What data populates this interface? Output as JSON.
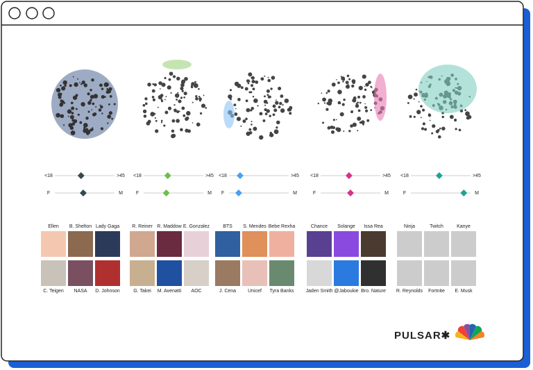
{
  "columns": [
    {
      "color": "#37474f",
      "age_labels": [
        "<18",
        ">45"
      ],
      "gender_labels": [
        "F",
        "M"
      ],
      "age_position": 0.45,
      "gender_position": 0.48,
      "top": [
        "Ellen",
        "B. Shelton",
        "Lady Gaga"
      ],
      "bottom": [
        "C. Teigen",
        "NASA",
        "D. Johnson"
      ]
    },
    {
      "color": "#6bbf4a",
      "age_labels": [
        "<18",
        ">45"
      ],
      "gender_labels": [
        "F",
        "M"
      ],
      "age_position": 0.42,
      "gender_position": 0.4,
      "top": [
        "R. Reiner",
        "R. Maddow",
        "E. Gonzalez"
      ],
      "bottom": [
        "G. Takei",
        "M. Avenatti",
        "AOC"
      ]
    },
    {
      "color": "#4a9ff0",
      "age_labels": [
        "<18",
        ">45"
      ],
      "gender_labels": [
        "F",
        "M"
      ],
      "age_position": 0.24,
      "gender_position": 0.22,
      "top": [
        "BTS",
        "S. Mendes",
        "Bebe Rexha"
      ],
      "bottom": [
        "J. Cena",
        "Unicef",
        "Tyra Banks"
      ]
    },
    {
      "color": "#d6338a",
      "age_labels": [
        "<18",
        ">45"
      ],
      "gender_labels": [
        "F",
        "M"
      ],
      "age_position": 0.48,
      "gender_position": 0.5,
      "top": [
        "Chance",
        "Solange",
        "Issa Rea"
      ],
      "bottom": [
        "Jaden Smith",
        "@Jaboukie",
        "Bro. Nature"
      ]
    },
    {
      "color": "#1fa58f",
      "age_labels": [
        "<18",
        ">45"
      ],
      "gender_labels": [
        "F",
        "M"
      ],
      "age_position": 0.48,
      "gender_position": 0.82,
      "top": [
        "Ninja",
        "Twitch",
        "Kanye"
      ],
      "bottom": [
        "R. Reynolds",
        "Fortnite",
        "E. Musk"
      ]
    }
  ],
  "brand": "PULSAR✱"
}
